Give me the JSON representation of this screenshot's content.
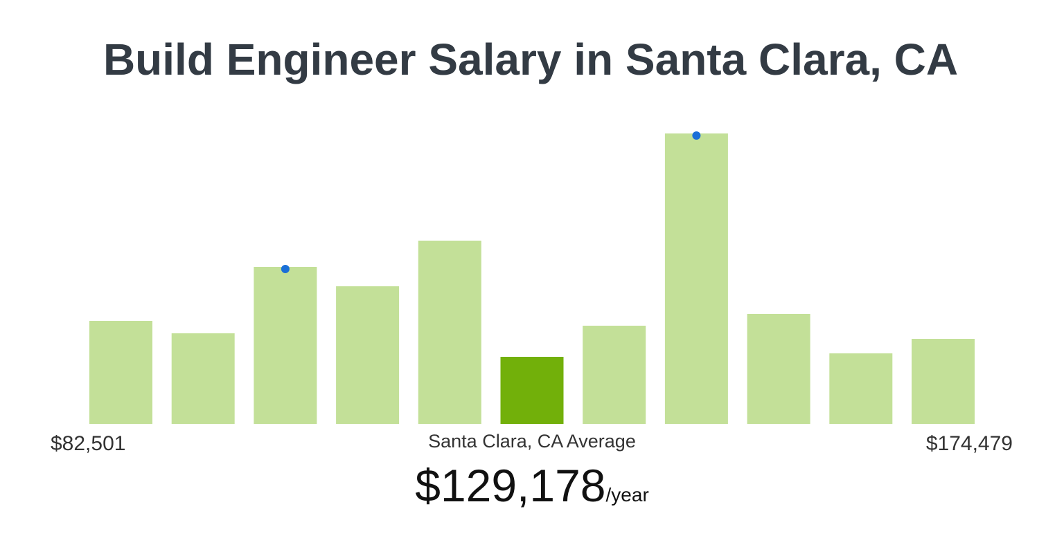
{
  "chart_data": {
    "type": "bar",
    "title": "Build Engineer Salary in Santa Clara, CA",
    "values": [
      149,
      131,
      227,
      199,
      265,
      97,
      142,
      420,
      159,
      102,
      123
    ],
    "colors": [
      "#c3e098",
      "#c3e098",
      "#c3e098",
      "#c3e098",
      "#c3e098",
      "#72b00a",
      "#c3e098",
      "#c3e098",
      "#c3e098",
      "#c3e098",
      "#c3e098"
    ],
    "dots": [
      false,
      false,
      true,
      false,
      false,
      false,
      false,
      true,
      false,
      false,
      false
    ],
    "dot_color": "#1a6fd8",
    "min_label": "$82,501",
    "max_label": "$174,479",
    "average_caption": "Santa Clara, CA Average",
    "average": "$129,178",
    "average_unit": "/year"
  }
}
